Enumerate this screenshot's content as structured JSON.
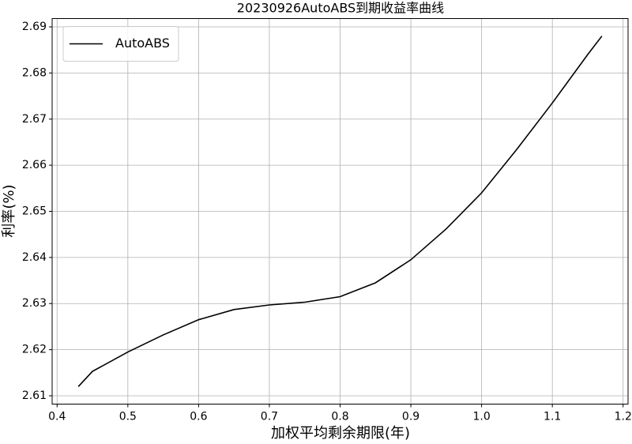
{
  "chart_data": {
    "type": "line",
    "title": "20230926AutoABS到期收益率曲线",
    "x_label": "加权平均剩余期限(年)",
    "y_label": "利率(%)",
    "x": [
      0.43,
      0.45,
      0.5,
      0.55,
      0.6,
      0.65,
      0.7,
      0.75,
      0.8,
      0.85,
      0.9,
      0.95,
      1.0,
      1.05,
      1.1,
      1.15,
      1.17
    ],
    "series": [
      {
        "name": "AutoABS",
        "color": "#000000",
        "values": [
          2.612,
          2.6153,
          2.6195,
          2.6232,
          2.6265,
          2.6287,
          2.6297,
          2.6303,
          2.6315,
          2.6345,
          2.6395,
          2.6462,
          2.654,
          2.6635,
          2.6735,
          2.684,
          2.688
        ]
      }
    ],
    "xlim": [
      0.393,
      1.207
    ],
    "ylim": [
      2.6082,
      2.6918
    ],
    "xticks": [
      0.4,
      0.5,
      0.6,
      0.7,
      0.8,
      0.9,
      {
        "value": 1,
        "label": "1.0"
      },
      1.1,
      1.2
    ],
    "yticks": [
      2.61,
      2.62,
      2.63,
      2.64,
      2.65,
      2.66,
      2.67,
      2.68,
      2.69
    ],
    "grid": true,
    "legend": "upper-left"
  }
}
